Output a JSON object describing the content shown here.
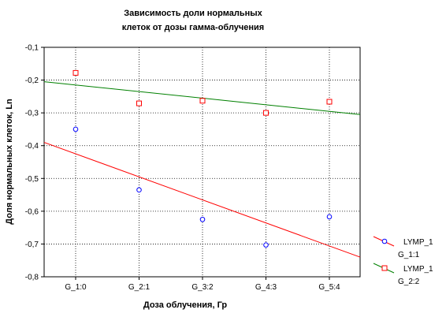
{
  "chart_data": {
    "type": "scatter",
    "title_line1": "Зависимость доли нормальных",
    "title_line2": "клеток от дозы гамма-облучения",
    "xlabel": "Доза облучения, Гр",
    "ylabel": "Доля нормальных клеток, Ln",
    "categories": [
      "G_1:0",
      "G_2:1",
      "G_3:2",
      "G_4:3",
      "G_5:4"
    ],
    "ylim": [
      -0.8,
      -0.1
    ],
    "yticks": [
      -0.1,
      -0.2,
      -0.3,
      -0.4,
      -0.5,
      -0.6,
      -0.7,
      -0.8
    ],
    "ytick_labels": [
      "-0,1",
      "-0,2",
      "-0,3",
      "-0,4",
      "-0,5",
      "-0,6",
      "-0,7",
      "-0,8"
    ],
    "grid": true,
    "legend_position": "right",
    "series": [
      {
        "name_line1": "LYMP_1",
        "name_line2": "G_1:1",
        "marker": "circle",
        "marker_color": "#0000ff",
        "line_color": "#ff0000",
        "values": [
          -0.35,
          -0.535,
          -0.625,
          -0.703,
          -0.617
        ],
        "fit_line": [
          -0.39,
          -0.74
        ]
      },
      {
        "name_line1": "LYMP_1",
        "name_line2": "G_2:2",
        "marker": "square",
        "marker_color": "#ff0000",
        "line_color": "#008000",
        "values": [
          -0.178,
          -0.271,
          -0.263,
          -0.3,
          -0.266
        ],
        "fit_line": [
          -0.205,
          -0.305
        ]
      }
    ]
  }
}
